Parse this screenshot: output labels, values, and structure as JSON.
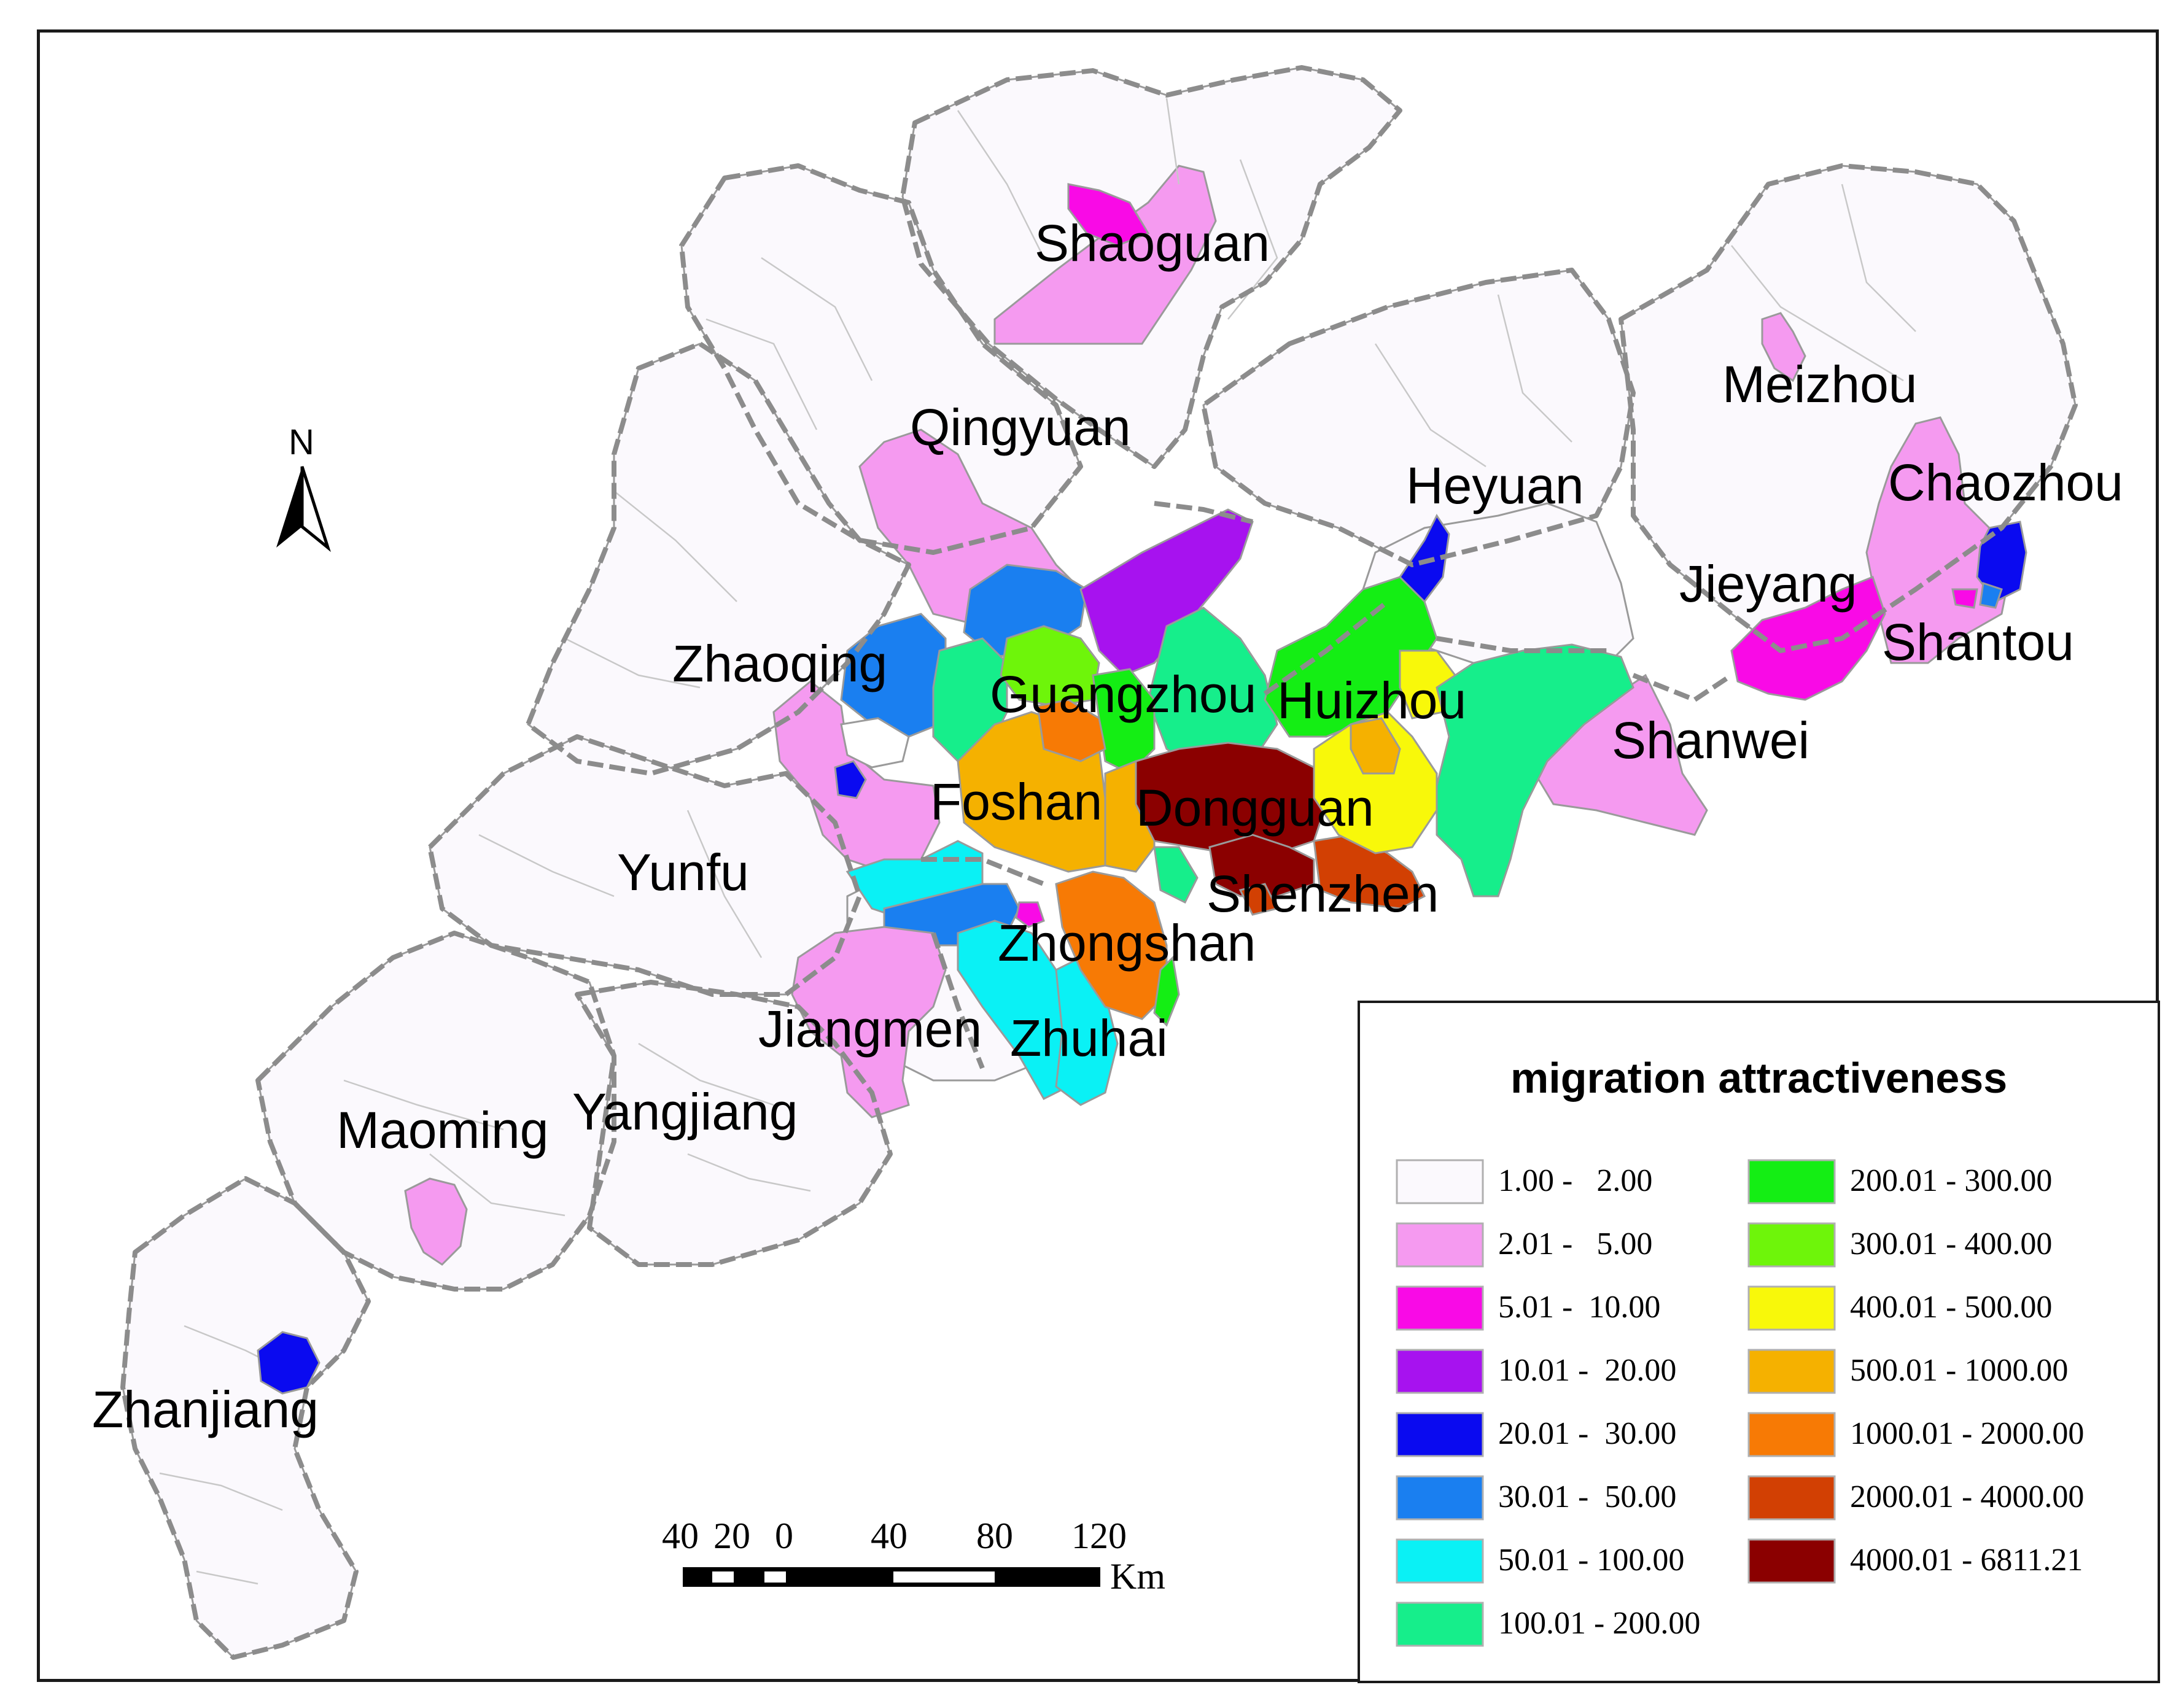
{
  "north_arrow": {
    "label": "N"
  },
  "cities": [
    {
      "name": "Shaoguan"
    },
    {
      "name": "Meizhou"
    },
    {
      "name": "Qingyuan"
    },
    {
      "name": "Heyuan"
    },
    {
      "name": "Chaozhou"
    },
    {
      "name": "Jieyang"
    },
    {
      "name": "Zhaoqing"
    },
    {
      "name": "Shantou"
    },
    {
      "name": "Guangzhou"
    },
    {
      "name": "Huizhou"
    },
    {
      "name": "Shanwei"
    },
    {
      "name": "Foshan"
    },
    {
      "name": "Dongguan"
    },
    {
      "name": "Yunfu"
    },
    {
      "name": "Shenzhen"
    },
    {
      "name": "Zhongshan"
    },
    {
      "name": "Jiangmen"
    },
    {
      "name": "Zhuhai"
    },
    {
      "name": "Maoming"
    },
    {
      "name": "Yangjiang"
    },
    {
      "name": "Zhanjiang"
    }
  ],
  "legend": {
    "title": "migration attractiveness",
    "classes": [
      {
        "label": "1.00 -   2.00",
        "color": "#fbf9fd"
      },
      {
        "label": "2.01 -   5.00",
        "color": "#f59af0"
      },
      {
        "label": "5.01 -  10.00",
        "color": "#f90ae6"
      },
      {
        "label": "10.01 -  20.00",
        "color": "#a712ef"
      },
      {
        "label": "20.01 -  30.00",
        "color": "#0a0af0"
      },
      {
        "label": "30.01 -  50.00",
        "color": "#1a7ff0"
      },
      {
        "label": "50.01 - 100.00",
        "color": "#0af1f5"
      },
      {
        "label": "100.01 - 200.00",
        "color": "#16ee8b"
      },
      {
        "label": "200.01 - 300.00",
        "color": "#14ee14"
      },
      {
        "label": "300.01 - 400.00",
        "color": "#6ef50a"
      },
      {
        "label": "400.01 - 500.00",
        "color": "#f8f80a"
      },
      {
        "label": "500.01 - 1000.00",
        "color": "#f5b100"
      },
      {
        "label": "1000.01 - 2000.00",
        "color": "#f77a05"
      },
      {
        "label": "2000.01 - 4000.00",
        "color": "#d24003"
      },
      {
        "label": "4000.01 - 6811.21",
        "color": "#8b0000"
      }
    ]
  },
  "scale_bar": {
    "tick_labels": [
      "40",
      "20",
      "0",
      "40",
      "80",
      "120"
    ],
    "unit": "Km"
  }
}
